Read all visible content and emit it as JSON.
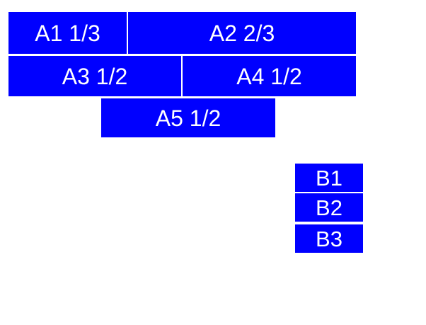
{
  "boxes": {
    "a1": {
      "label": "A1 1/3"
    },
    "a2": {
      "label": "A2 2/3"
    },
    "a3": {
      "label": "A3 1/2"
    },
    "a4": {
      "label": "A4 1/2"
    },
    "a5": {
      "label": "A5 1/2"
    },
    "b1": {
      "label": "B1"
    },
    "b2": {
      "label": "B2"
    },
    "b3": {
      "label": "B3"
    }
  },
  "colors": {
    "box_background": "#0000ff",
    "box_text": "#ffffff",
    "page_background": "#ffffff"
  }
}
